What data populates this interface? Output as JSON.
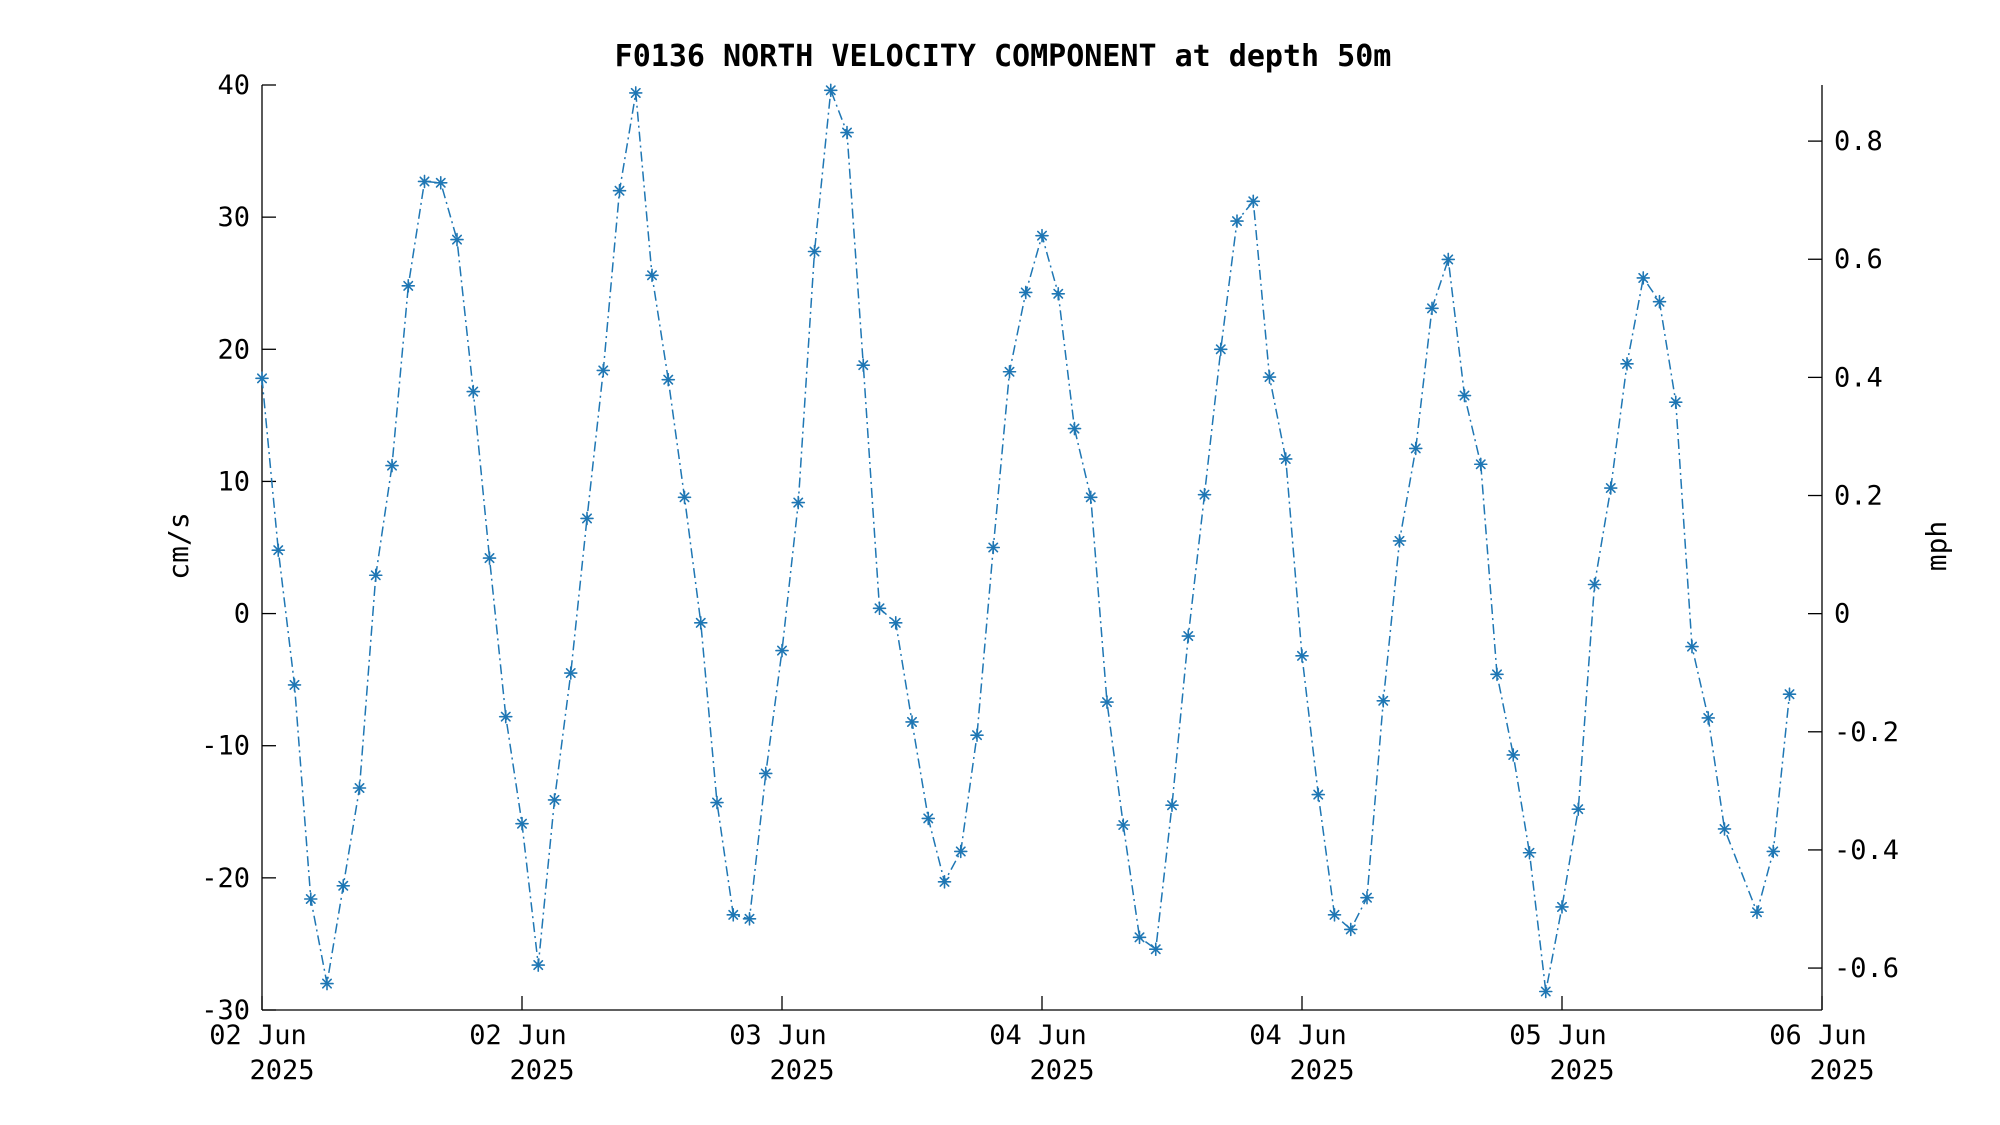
{
  "chart_data": {
    "type": "line",
    "title": "F0136 NORTH VELOCITY COMPONENT at depth 50m",
    "ylabel": "cm/s",
    "y2label": "mph",
    "ylim": [
      -30,
      40
    ],
    "y2lim": [
      -0.671,
      0.895
    ],
    "yticks": [
      -30,
      -20,
      -10,
      0,
      10,
      20,
      30,
      40
    ],
    "y2ticks": [
      "-0.6",
      "-0.4",
      "-0.2",
      "0",
      "0.2",
      "0.4",
      "0.6",
      "0.8"
    ],
    "y2tick_values": [
      -0.6,
      -0.4,
      -0.2,
      0,
      0.2,
      0.4,
      0.6,
      0.8
    ],
    "xlim": [
      "2025-06-02T00:00",
      "2025-06-06T00:00"
    ],
    "xticks": [
      {
        "date": "2025-06-02T00:00",
        "line1": "02 Jun",
        "line2": "2025"
      },
      {
        "date": "2025-06-02T16:00",
        "line1": "02 Jun",
        "line2": "2025"
      },
      {
        "date": "2025-06-03T08:00",
        "line1": "03 Jun",
        "line2": "2025"
      },
      {
        "date": "2025-06-04T00:00",
        "line1": "04 Jun",
        "line2": "2025"
      },
      {
        "date": "2025-06-04T16:00",
        "line1": "04 Jun",
        "line2": "2025"
      },
      {
        "date": "2025-06-05T08:00",
        "line1": "05 Jun",
        "line2": "2025"
      },
      {
        "date": "2025-06-06T00:00",
        "line1": "06 Jun",
        "line2": "2025"
      }
    ],
    "grid": false,
    "line_style": "dash-dot",
    "marker": "asterisk",
    "color": "#1f77b4",
    "series": [
      {
        "values": [
          {
            "t": "2025-06-02T00:00",
            "v": 17.8
          },
          {
            "t": "2025-06-02T01:00",
            "v": 4.8
          },
          {
            "t": "2025-06-02T02:00",
            "v": -5.4
          },
          {
            "t": "2025-06-02T03:00",
            "v": -21.6
          },
          {
            "t": "2025-06-02T04:00",
            "v": -28.0
          },
          {
            "t": "2025-06-02T05:00",
            "v": -20.6
          },
          {
            "t": "2025-06-02T06:00",
            "v": -13.2
          },
          {
            "t": "2025-06-02T07:00",
            "v": 2.9
          },
          {
            "t": "2025-06-02T08:00",
            "v": 11.2
          },
          {
            "t": "2025-06-02T09:00",
            "v": 24.8
          },
          {
            "t": "2025-06-02T10:00",
            "v": 32.7
          },
          {
            "t": "2025-06-02T11:00",
            "v": 32.6
          },
          {
            "t": "2025-06-02T12:00",
            "v": 28.3
          },
          {
            "t": "2025-06-02T13:00",
            "v": 16.8
          },
          {
            "t": "2025-06-02T14:00",
            "v": 4.2
          },
          {
            "t": "2025-06-02T15:00",
            "v": -7.8
          },
          {
            "t": "2025-06-02T16:00",
            "v": -15.9
          },
          {
            "t": "2025-06-02T17:00",
            "v": -26.6
          },
          {
            "t": "2025-06-02T18:00",
            "v": -14.1
          },
          {
            "t": "2025-06-02T19:00",
            "v": -4.5
          },
          {
            "t": "2025-06-02T20:00",
            "v": 7.2
          },
          {
            "t": "2025-06-02T21:00",
            "v": 18.4
          },
          {
            "t": "2025-06-02T22:00",
            "v": 32.0
          },
          {
            "t": "2025-06-02T23:00",
            "v": 39.4
          },
          {
            "t": "2025-06-03T00:00",
            "v": 25.6
          },
          {
            "t": "2025-06-03T01:00",
            "v": 17.7
          },
          {
            "t": "2025-06-03T02:00",
            "v": 8.8
          },
          {
            "t": "2025-06-03T03:00",
            "v": -0.7
          },
          {
            "t": "2025-06-03T04:00",
            "v": -14.3
          },
          {
            "t": "2025-06-03T05:00",
            "v": -22.8
          },
          {
            "t": "2025-06-03T06:00",
            "v": -23.1
          },
          {
            "t": "2025-06-03T07:00",
            "v": -12.1
          },
          {
            "t": "2025-06-03T08:00",
            "v": -2.8
          },
          {
            "t": "2025-06-03T09:00",
            "v": 8.4
          },
          {
            "t": "2025-06-03T10:00",
            "v": 27.4
          },
          {
            "t": "2025-06-03T11:00",
            "v": 39.6
          },
          {
            "t": "2025-06-03T12:00",
            "v": 36.4
          },
          {
            "t": "2025-06-03T13:00",
            "v": 18.8
          },
          {
            "t": "2025-06-03T14:00",
            "v": 0.4
          },
          {
            "t": "2025-06-03T15:00",
            "v": -0.7
          },
          {
            "t": "2025-06-03T16:00",
            "v": -8.2
          },
          {
            "t": "2025-06-03T17:00",
            "v": -15.5
          },
          {
            "t": "2025-06-03T18:00",
            "v": -20.3
          },
          {
            "t": "2025-06-03T19:00",
            "v": -18.0
          },
          {
            "t": "2025-06-03T20:00",
            "v": -9.2
          },
          {
            "t": "2025-06-03T21:00",
            "v": 5.0
          },
          {
            "t": "2025-06-03T22:00",
            "v": 18.3
          },
          {
            "t": "2025-06-03T23:00",
            "v": 24.3
          },
          {
            "t": "2025-06-04T00:00",
            "v": 28.6
          },
          {
            "t": "2025-06-04T01:00",
            "v": 24.2
          },
          {
            "t": "2025-06-04T02:00",
            "v": 14.0
          },
          {
            "t": "2025-06-04T03:00",
            "v": 8.8
          },
          {
            "t": "2025-06-04T04:00",
            "v": -6.7
          },
          {
            "t": "2025-06-04T05:00",
            "v": -16.0
          },
          {
            "t": "2025-06-04T06:00",
            "v": -24.5
          },
          {
            "t": "2025-06-04T07:00",
            "v": -25.4
          },
          {
            "t": "2025-06-04T08:00",
            "v": -14.5
          },
          {
            "t": "2025-06-04T09:00",
            "v": -1.7
          },
          {
            "t": "2025-06-04T10:00",
            "v": 9.0
          },
          {
            "t": "2025-06-04T11:00",
            "v": 20.0
          },
          {
            "t": "2025-06-04T12:00",
            "v": 29.7
          },
          {
            "t": "2025-06-04T13:00",
            "v": 31.2
          },
          {
            "t": "2025-06-04T14:00",
            "v": 17.9
          },
          {
            "t": "2025-06-04T15:00",
            "v": 11.7
          },
          {
            "t": "2025-06-04T16:00",
            "v": -3.2
          },
          {
            "t": "2025-06-04T17:00",
            "v": -13.7
          },
          {
            "t": "2025-06-04T18:00",
            "v": -22.8
          },
          {
            "t": "2025-06-04T19:00",
            "v": -23.9
          },
          {
            "t": "2025-06-04T20:00",
            "v": -21.5
          },
          {
            "t": "2025-06-04T21:00",
            "v": -6.6
          },
          {
            "t": "2025-06-04T22:00",
            "v": 5.5
          },
          {
            "t": "2025-06-04T23:00",
            "v": 12.5
          },
          {
            "t": "2025-06-05T00:00",
            "v": 23.1
          },
          {
            "t": "2025-06-05T01:00",
            "v": 26.8
          },
          {
            "t": "2025-06-05T02:00",
            "v": 16.5
          },
          {
            "t": "2025-06-05T03:00",
            "v": 11.3
          },
          {
            "t": "2025-06-05T04:00",
            "v": -4.6
          },
          {
            "t": "2025-06-05T05:00",
            "v": -10.7
          },
          {
            "t": "2025-06-05T06:00",
            "v": -18.1
          },
          {
            "t": "2025-06-05T07:00",
            "v": -28.6
          },
          {
            "t": "2025-06-05T08:00",
            "v": -22.2
          },
          {
            "t": "2025-06-05T09:00",
            "v": -14.8
          },
          {
            "t": "2025-06-05T10:00",
            "v": 2.2
          },
          {
            "t": "2025-06-05T11:00",
            "v": 9.5
          },
          {
            "t": "2025-06-05T12:00",
            "v": 18.9
          },
          {
            "t": "2025-06-05T13:00",
            "v": 25.4
          },
          {
            "t": "2025-06-05T14:00",
            "v": 23.6
          },
          {
            "t": "2025-06-05T15:00",
            "v": 16.0
          },
          {
            "t": "2025-06-05T16:00",
            "v": -2.5
          },
          {
            "t": "2025-06-05T17:00",
            "v": -7.9
          },
          {
            "t": "2025-06-05T18:00",
            "v": -16.3
          },
          {
            "t": "2025-06-05T20:00",
            "v": -22.6
          },
          {
            "t": "2025-06-05T21:00",
            "v": -18.0
          },
          {
            "t": "2025-06-05T22:00",
            "v": -6.1
          }
        ]
      }
    ]
  }
}
